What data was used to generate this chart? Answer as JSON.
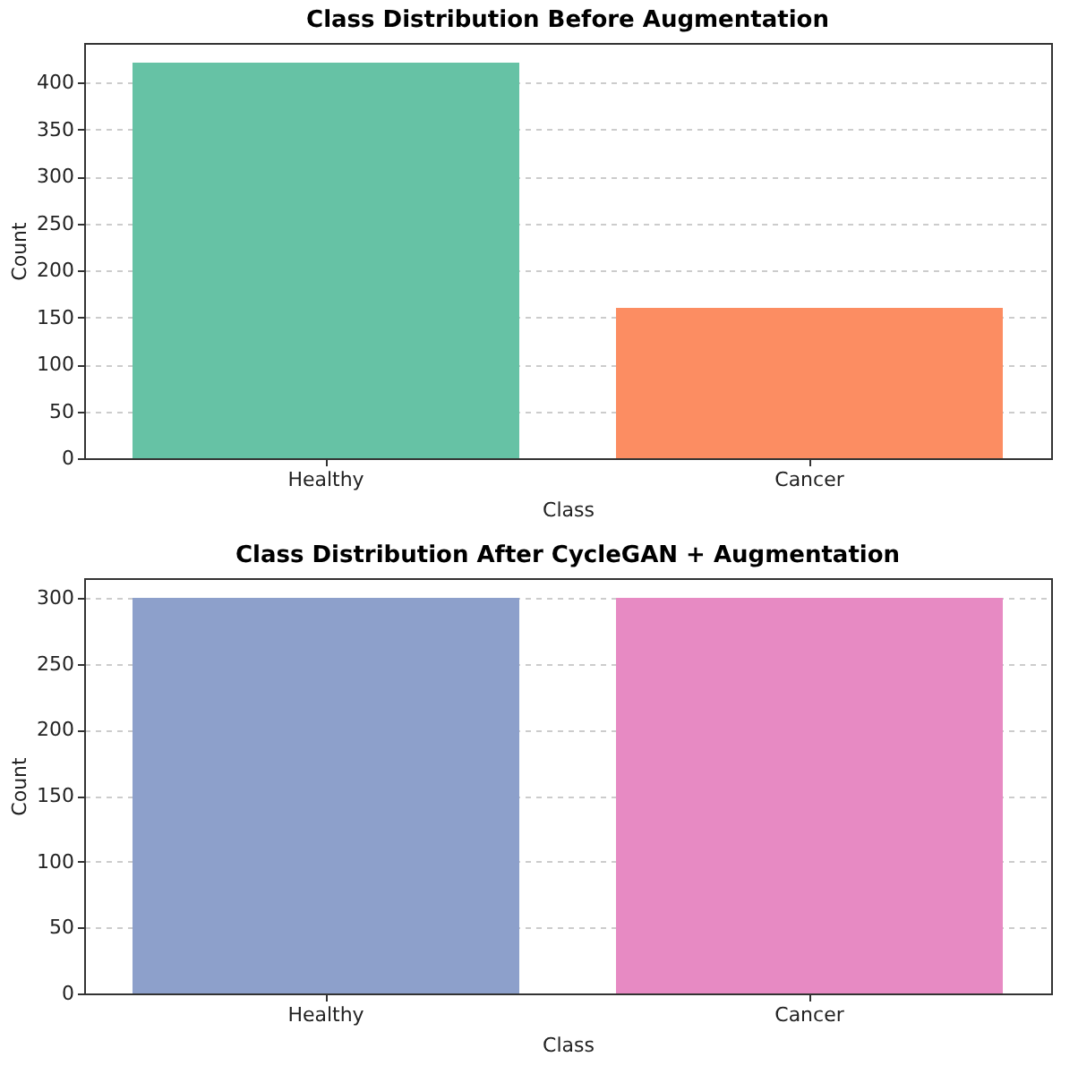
{
  "chart_data": [
    {
      "type": "bar",
      "title": "Class Distribution Before Augmentation",
      "xlabel": "Class",
      "ylabel": "Count",
      "categories": [
        "Healthy",
        "Cancer"
      ],
      "values": [
        421,
        160
      ],
      "colors": [
        "#66c2a5",
        "#fc8d62"
      ],
      "ylim": [
        0,
        442
      ],
      "yticks": [
        0,
        50,
        100,
        150,
        200,
        250,
        300,
        350,
        400
      ],
      "grid": "y",
      "line_style": "dashed"
    },
    {
      "type": "bar",
      "title": "Class Distribution After CycleGAN + Augmentation",
      "xlabel": "Class",
      "ylabel": "Count",
      "categories": [
        "Healthy",
        "Cancer"
      ],
      "values": [
        300,
        300
      ],
      "colors": [
        "#8da0cb",
        "#e78ac3"
      ],
      "ylim": [
        0,
        315
      ],
      "yticks": [
        0,
        50,
        100,
        150,
        200,
        250,
        300
      ],
      "grid": "y",
      "line_style": "dashed"
    }
  ]
}
